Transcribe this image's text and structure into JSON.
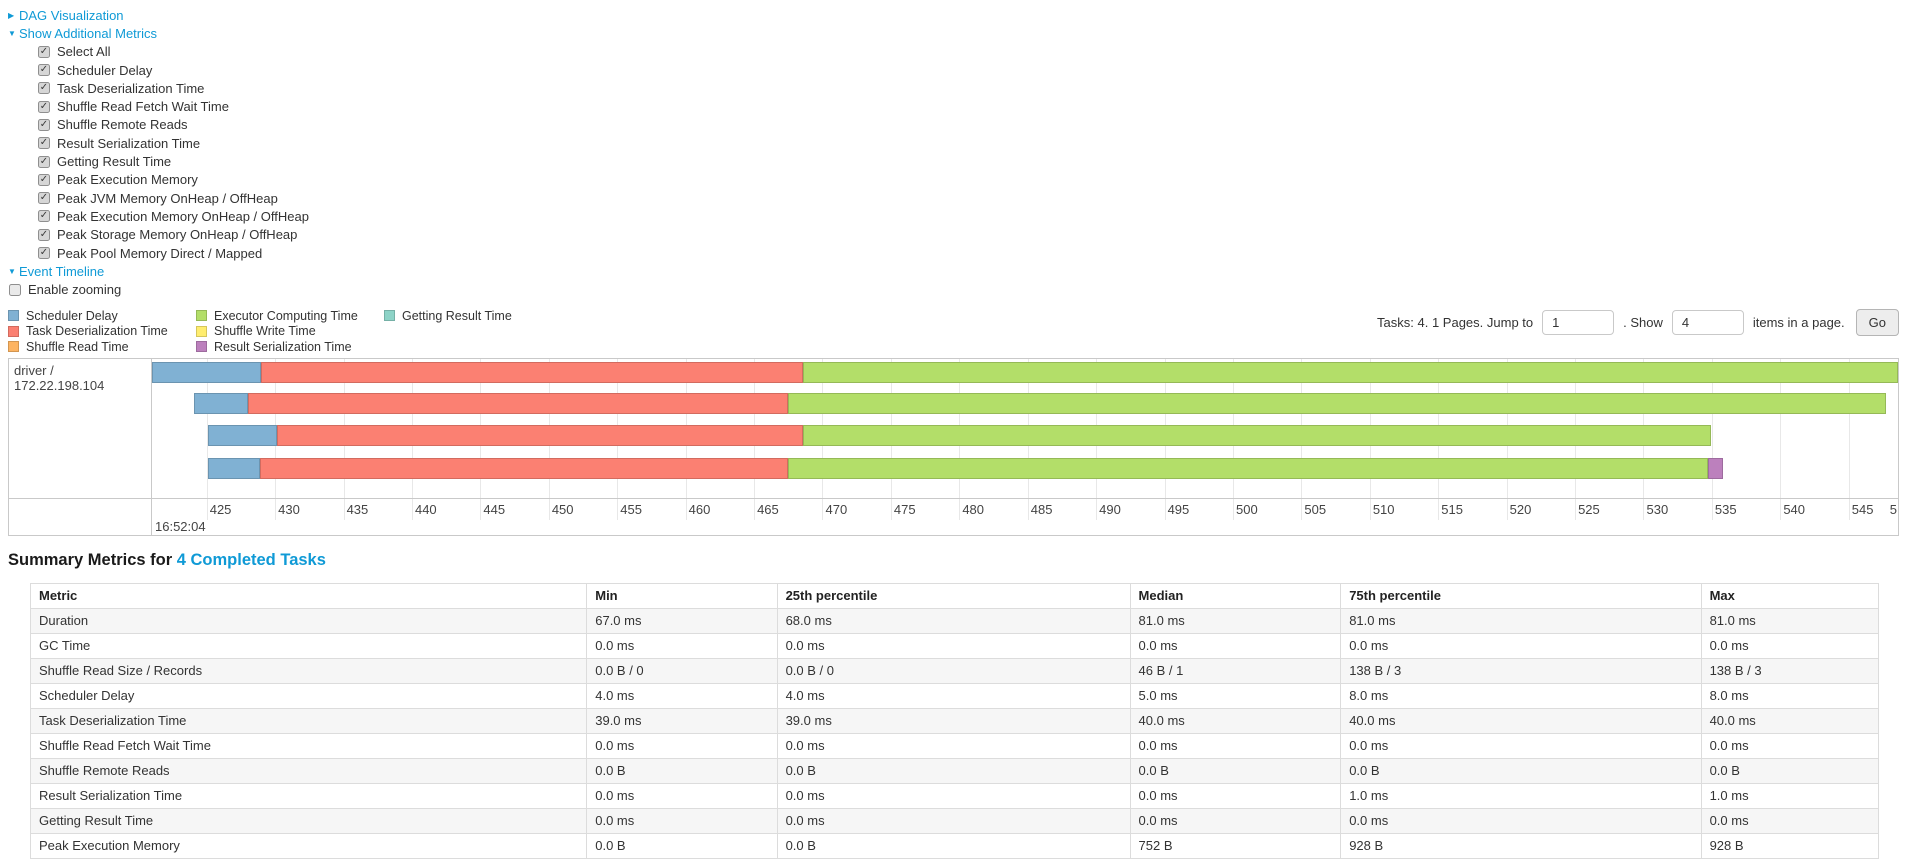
{
  "controls": {
    "dag_visualization": "DAG Visualization",
    "show_additional_metrics": "Show Additional Metrics",
    "metrics_checkboxes": [
      {
        "label": "Select All",
        "checked": true
      },
      {
        "label": "Scheduler Delay",
        "checked": true
      },
      {
        "label": "Task Deserialization Time",
        "checked": true
      },
      {
        "label": "Shuffle Read Fetch Wait Time",
        "checked": true
      },
      {
        "label": "Shuffle Remote Reads",
        "checked": true
      },
      {
        "label": "Result Serialization Time",
        "checked": true
      },
      {
        "label": "Getting Result Time",
        "checked": true
      },
      {
        "label": "Peak Execution Memory",
        "checked": true
      },
      {
        "label": "Peak JVM Memory OnHeap / OffHeap",
        "checked": true
      },
      {
        "label": "Peak Execution Memory OnHeap / OffHeap",
        "checked": true
      },
      {
        "label": "Peak Storage Memory OnHeap / OffHeap",
        "checked": true
      },
      {
        "label": "Peak Pool Memory Direct / Mapped",
        "checked": true
      }
    ],
    "event_timeline": "Event Timeline",
    "enable_zooming": {
      "label": "Enable zooming",
      "checked": false
    }
  },
  "pagination": {
    "tasks_info": "Tasks: 4. 1 Pages. Jump to",
    "jump_value": "1",
    "show_label": ". Show",
    "show_value": "4",
    "items_label": "items in a page.",
    "go_label": "Go"
  },
  "legend": {
    "columns": [
      [
        {
          "key": "scheduler_delay",
          "label": "Scheduler Delay",
          "fill": "#80B1D3",
          "stroke": "#6B94B0"
        },
        {
          "key": "task_deserialization_time",
          "label": "Task Deserialization Time",
          "fill": "#FB8072",
          "stroke": "#D26B5F"
        },
        {
          "key": "shuffle_read_time",
          "label": "Shuffle Read Time",
          "fill": "#FDB462",
          "stroke": "#D39651"
        }
      ],
      [
        {
          "key": "executor_computing_time",
          "label": "Executor Computing Time",
          "fill": "#B3DE69",
          "stroke": "#95B957"
        },
        {
          "key": "shuffle_write_time",
          "label": "Shuffle Write Time",
          "fill": "#FFED6F",
          "stroke": "#D5C65C"
        },
        {
          "key": "result_serialization_time",
          "label": "Result Serialization Time",
          "fill": "#BC80BD",
          "stroke": "#9D6B9E"
        }
      ],
      [
        {
          "key": "getting_result_time",
          "label": "Getting Result Time",
          "fill": "#8DD3C7",
          "stroke": "#75B0A6"
        }
      ]
    ]
  },
  "chart_data": {
    "type": "timeline",
    "title": "Event Timeline",
    "group_label": "driver / 172.22.198.104",
    "axis": {
      "unit": "milliseconds of 16:52:04",
      "min": 421.0,
      "max": 548.6,
      "tick_step": 5,
      "ticks": [
        425,
        430,
        435,
        440,
        445,
        450,
        455,
        460,
        465,
        470,
        475,
        480,
        485,
        490,
        495,
        500,
        505,
        510,
        515,
        520,
        525,
        530,
        535,
        540,
        545
      ],
      "major_label": "16:52:04",
      "clipped_tick_label": "5",
      "grid": true
    },
    "tasks": [
      {
        "segments": [
          {
            "type": "scheduler_delay",
            "start": 421.0,
            "end": 429.0
          },
          {
            "type": "task_deserialization_time",
            "start": 429.0,
            "end": 468.6
          },
          {
            "type": "executor_computing_time",
            "start": 468.6,
            "end": 548.6
          }
        ]
      },
      {
        "segments": [
          {
            "type": "scheduler_delay",
            "start": 424.1,
            "end": 428.0
          },
          {
            "type": "task_deserialization_time",
            "start": 428.0,
            "end": 467.5
          },
          {
            "type": "executor_computing_time",
            "start": 467.5,
            "end": 547.7
          }
        ]
      },
      {
        "segments": [
          {
            "type": "scheduler_delay",
            "start": 425.1,
            "end": 430.1
          },
          {
            "type": "task_deserialization_time",
            "start": 430.1,
            "end": 468.6
          },
          {
            "type": "executor_computing_time",
            "start": 468.6,
            "end": 534.9
          }
        ]
      },
      {
        "segments": [
          {
            "type": "scheduler_delay",
            "start": 425.1,
            "end": 428.9
          },
          {
            "type": "task_deserialization_time",
            "start": 428.9,
            "end": 467.5
          },
          {
            "type": "executor_computing_time",
            "start": 467.5,
            "end": 534.7
          },
          {
            "type": "result_serialization_time",
            "start": 534.7,
            "end": 535.8
          }
        ]
      }
    ]
  },
  "summary": {
    "title_prefix": "Summary Metrics for ",
    "title_link": "4 Completed Tasks",
    "table": {
      "headers": [
        "Metric",
        "Min",
        "25th percentile",
        "Median",
        "75th percentile",
        "Max"
      ],
      "rows": [
        {
          "metric": "Duration",
          "values": [
            "67.0 ms",
            "68.0 ms",
            "81.0 ms",
            "81.0 ms",
            "81.0 ms"
          ]
        },
        {
          "metric": "GC Time",
          "values": [
            "0.0 ms",
            "0.0 ms",
            "0.0 ms",
            "0.0 ms",
            "0.0 ms"
          ]
        },
        {
          "metric": "Shuffle Read Size / Records",
          "values": [
            "0.0 B / 0",
            "0.0 B / 0",
            "46 B / 1",
            "138 B / 3",
            "138 B / 3"
          ]
        },
        {
          "metric": "Scheduler Delay",
          "values": [
            "4.0 ms",
            "4.0 ms",
            "5.0 ms",
            "8.0 ms",
            "8.0 ms"
          ]
        },
        {
          "metric": "Task Deserialization Time",
          "values": [
            "39.0 ms",
            "39.0 ms",
            "40.0 ms",
            "40.0 ms",
            "40.0 ms"
          ]
        },
        {
          "metric": "Shuffle Read Fetch Wait Time",
          "values": [
            "0.0 ms",
            "0.0 ms",
            "0.0 ms",
            "0.0 ms",
            "0.0 ms"
          ]
        },
        {
          "metric": "Shuffle Remote Reads",
          "values": [
            "0.0 B",
            "0.0 B",
            "0.0 B",
            "0.0 B",
            "0.0 B"
          ]
        },
        {
          "metric": "Result Serialization Time",
          "values": [
            "0.0 ms",
            "0.0 ms",
            "0.0 ms",
            "1.0 ms",
            "1.0 ms"
          ]
        },
        {
          "metric": "Getting Result Time",
          "values": [
            "0.0 ms",
            "0.0 ms",
            "0.0 ms",
            "0.0 ms",
            "0.0 ms"
          ]
        },
        {
          "metric": "Peak Execution Memory",
          "values": [
            "0.0 B",
            "0.0 B",
            "752 B",
            "928 B",
            "928 B"
          ]
        }
      ]
    }
  },
  "colors": {
    "link": "#0f9ad6",
    "chart_border": "#c9c9c9",
    "gridline": "#e8e8e8",
    "table_stripe": "#f6f6f6"
  }
}
